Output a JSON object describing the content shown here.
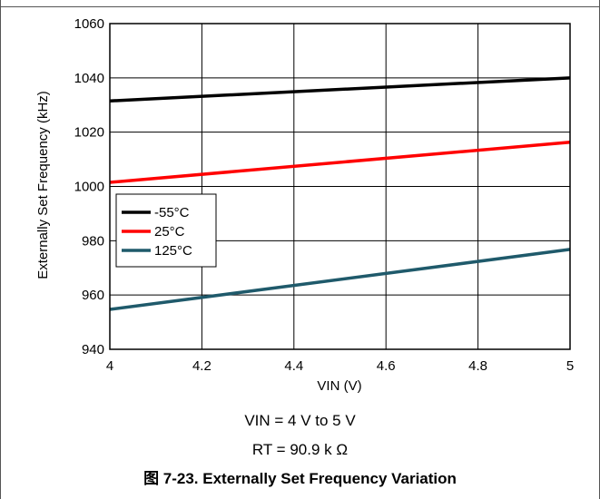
{
  "chart_data": {
    "type": "line",
    "title": "",
    "xlabel": "VIN (V)",
    "ylabel": "Externally Set Frequency (kHz)",
    "xlim": [
      4,
      5
    ],
    "ylim": [
      940,
      1060
    ],
    "x_ticks": [
      "4",
      "4.2",
      "4.4",
      "4.6",
      "4.8",
      "5"
    ],
    "y_ticks": [
      "940",
      "960",
      "980",
      "1000",
      "1020",
      "1040",
      "1060"
    ],
    "grid": true,
    "legend_position": "left-middle",
    "series": [
      {
        "name": "-55°C",
        "color": "#000000",
        "x": [
          4,
          5
        ],
        "y": [
          1031.5,
          1040
        ]
      },
      {
        "name": "25°C",
        "color": "#ff0000",
        "x": [
          4,
          5
        ],
        "y": [
          1001.5,
          1016.3
        ]
      },
      {
        "name": "125°C",
        "color": "#1f5a6b",
        "x": [
          4,
          5
        ],
        "y": [
          954.7,
          976.8
        ]
      }
    ]
  },
  "notes": {
    "conditions_vin": "VIN = 4 V to 5 V",
    "conditions_rt": "RT = 90.9 k Ω"
  },
  "caption": "图 7-23. Externally Set Frequency Variation"
}
